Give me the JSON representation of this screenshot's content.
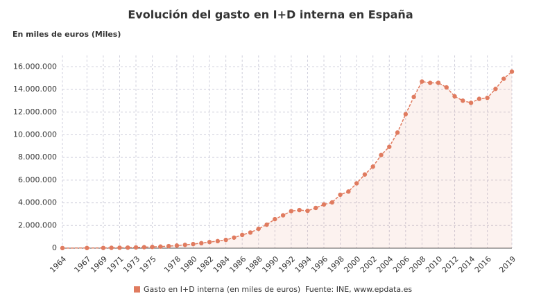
{
  "chart_data": {
    "type": "line",
    "title": "Evolución del gasto en I+D interna en España",
    "y_label": "En miles de euros (Miles)",
    "source": "Fuente: INE, www.epdata.es",
    "x": [
      1964,
      1967,
      1969,
      1970,
      1971,
      1972,
      1973,
      1974,
      1975,
      1976,
      1977,
      1978,
      1979,
      1980,
      1981,
      1982,
      1983,
      1984,
      1985,
      1986,
      1987,
      1988,
      1989,
      1990,
      1991,
      1992,
      1993,
      1994,
      1995,
      1996,
      1997,
      1998,
      1999,
      2000,
      2001,
      2002,
      2003,
      2004,
      2005,
      2006,
      2007,
      2008,
      2009,
      2010,
      2011,
      2012,
      2013,
      2014,
      2015,
      2016,
      2017,
      2018,
      2019
    ],
    "series": [
      {
        "name": "Gasto en I+D interna (en miles de euros)",
        "color": "#e07b5f",
        "values": [
          8000,
          15000,
          22000,
          30000,
          40000,
          50000,
          65000,
          85000,
          110000,
          140000,
          180000,
          230000,
          290000,
          360000,
          440000,
          540000,
          620000,
          730000,
          930000,
          1170000,
          1380000,
          1710000,
          2070000,
          2560000,
          2900000,
          3270000,
          3360000,
          3296000,
          3550000,
          3852630,
          4038739,
          4715018,
          4995360,
          5718988,
          6496999,
          7193538,
          8213036,
          8945761,
          10196871,
          11815218,
          13342371,
          14701393,
          14581676,
          14588455,
          14184295,
          13391607,
          13011798,
          12820756,
          13171807,
          13259763,
          14052048,
          14945731,
          15572041
        ]
      }
    ],
    "xlim": [
      1964,
      2019
    ],
    "xticks": [
      1964,
      1967,
      1969,
      1971,
      1973,
      1975,
      1978,
      1980,
      1982,
      1984,
      1986,
      1988,
      1990,
      1992,
      1994,
      1996,
      1998,
      2000,
      2002,
      2004,
      2006,
      2008,
      2010,
      2012,
      2014,
      2016,
      2019
    ],
    "ylim": [
      0,
      17000000
    ],
    "yticks": [
      0,
      {
        "value": 2000000,
        "label": "2.000.000"
      },
      {
        "value": 4000000,
        "label": "4.000.000"
      },
      {
        "value": 6000000,
        "label": "6.000.000"
      },
      {
        "value": 8000000,
        "label": "8.000.000"
      },
      {
        "value": 10000000,
        "label": "10.000.000"
      },
      {
        "value": 12000000,
        "label": "12.000.000"
      },
      {
        "value": 14000000,
        "label": "14.000.000"
      },
      {
        "value": 16000000,
        "label": "16.000.000"
      }
    ],
    "grid": true
  }
}
